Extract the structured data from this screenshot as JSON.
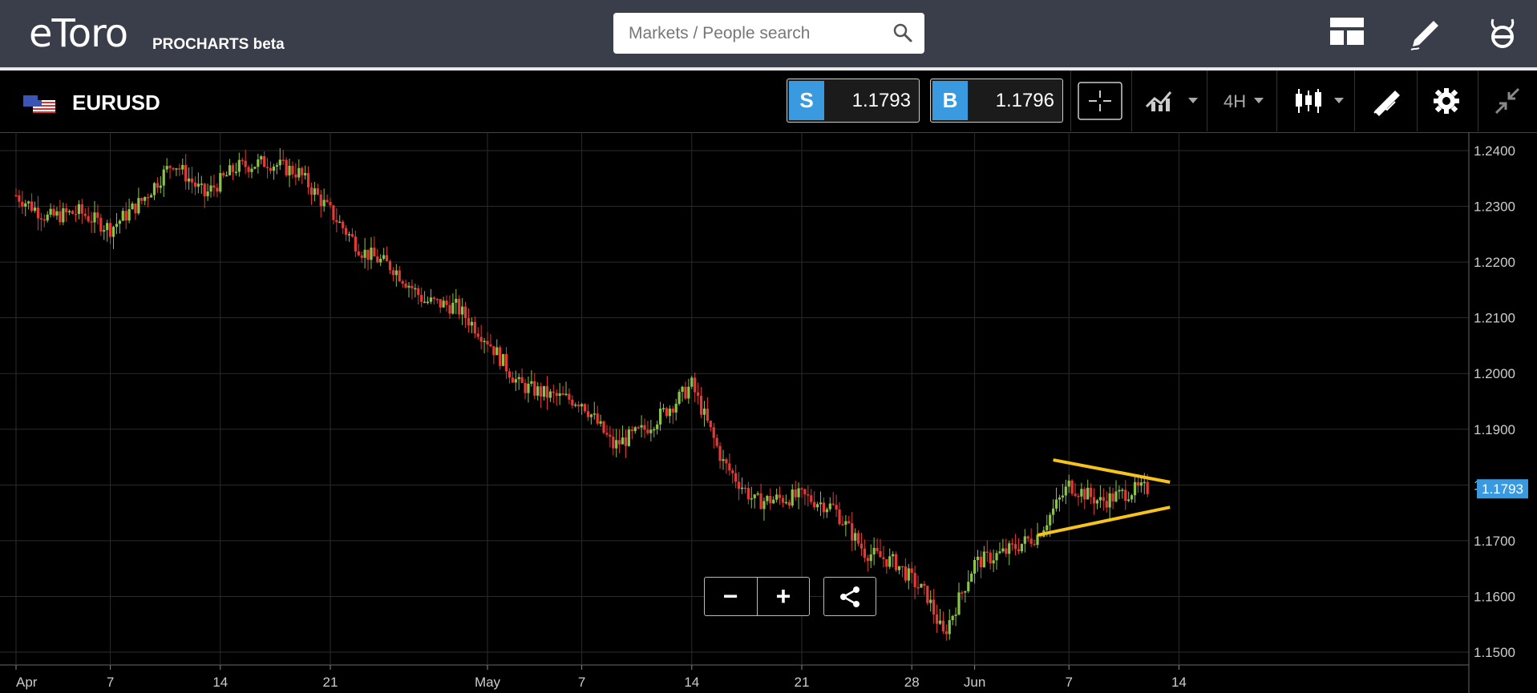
{
  "header": {
    "brand": "eToro",
    "product_label": "PROCHARTS beta",
    "search": {
      "placeholder": "Markets / People search"
    }
  },
  "toolbar": {
    "instrument": "EURUSD",
    "sell": {
      "label": "S",
      "price": "1.1793"
    },
    "buy": {
      "label": "B",
      "price": "1.1796"
    },
    "timeframe": "4H"
  },
  "icons": [
    "layout-icon",
    "pencil-icon",
    "etoro-icon",
    "crosshair-icon",
    "chart-type-icon",
    "candlestick-icon",
    "draw-tools-icon",
    "gear-icon",
    "collapse-icon",
    "share-icon"
  ],
  "colors": {
    "up": "#8bc34a",
    "down": "#e53935",
    "accent": "#3a9ae0",
    "trendline": "#f6c21c",
    "grid": "#2b2b2b"
  },
  "zoom": {
    "minus": "−",
    "plus": "+"
  },
  "chart_data": {
    "type": "candlestick",
    "series_name": "EURUSD",
    "x_tick_labels": [
      "Apr",
      "7",
      "14",
      "21",
      "May",
      "7",
      "14",
      "21",
      "28",
      "Jun",
      "7",
      "14"
    ],
    "y_tick_labels": [
      "1.2400",
      "1.2300",
      "1.2200",
      "1.2100",
      "1.2000",
      "1.1900",
      "1.1800",
      "1.1700",
      "1.1600",
      "1.1500"
    ],
    "ylim": [
      1.149,
      1.2425
    ],
    "current_price_label": "1.1793",
    "approx_close_path": [
      {
        "x": "Apr 1",
        "y": 1.232
      },
      {
        "x": "Apr 3",
        "y": 1.228
      },
      {
        "x": "Apr 5",
        "y": 1.229
      },
      {
        "x": "Apr 7",
        "y": 1.226
      },
      {
        "x": "Apr 9",
        "y": 1.231
      },
      {
        "x": "Apr 11",
        "y": 1.238
      },
      {
        "x": "Apr 13",
        "y": 1.232
      },
      {
        "x": "Apr 15",
        "y": 1.237
      },
      {
        "x": "Apr 17",
        "y": 1.238
      },
      {
        "x": "Apr 19",
        "y": 1.236
      },
      {
        "x": "Apr 21",
        "y": 1.229
      },
      {
        "x": "Apr 23",
        "y": 1.222
      },
      {
        "x": "Apr 25",
        "y": 1.219
      },
      {
        "x": "Apr 27",
        "y": 1.213
      },
      {
        "x": "Apr 29",
        "y": 1.212
      },
      {
        "x": "May 1",
        "y": 1.206
      },
      {
        "x": "May 3",
        "y": 1.198
      },
      {
        "x": "May 5",
        "y": 1.196
      },
      {
        "x": "May 7",
        "y": 1.195
      },
      {
        "x": "May 9",
        "y": 1.187
      },
      {
        "x": "May 11",
        "y": 1.19
      },
      {
        "x": "May 13",
        "y": 1.195
      },
      {
        "x": "May 14",
        "y": 1.198
      },
      {
        "x": "May 16",
        "y": 1.184
      },
      {
        "x": "May 18",
        "y": 1.177
      },
      {
        "x": "May 21",
        "y": 1.178
      },
      {
        "x": "May 23",
        "y": 1.176
      },
      {
        "x": "May 25",
        "y": 1.168
      },
      {
        "x": "May 27",
        "y": 1.166
      },
      {
        "x": "May 29",
        "y": 1.16
      },
      {
        "x": "May 30",
        "y": 1.153
      },
      {
        "x": "Jun 1",
        "y": 1.166
      },
      {
        "x": "Jun 3",
        "y": 1.168
      },
      {
        "x": "Jun 5",
        "y": 1.171
      },
      {
        "x": "Jun 7",
        "y": 1.18
      },
      {
        "x": "Jun 9",
        "y": 1.177
      },
      {
        "x": "Jun 11",
        "y": 1.179
      },
      {
        "x": "Jun 12",
        "y": 1.1793
      }
    ],
    "trendlines": [
      {
        "from": {
          "x": "Jun 6",
          "y": 1.1845
        },
        "to": {
          "x": "Jun 12",
          "y": 1.1805
        }
      },
      {
        "from": {
          "x": "Jun 5",
          "y": 1.171
        },
        "to": {
          "x": "Jun 12",
          "y": 1.176
        }
      }
    ]
  }
}
